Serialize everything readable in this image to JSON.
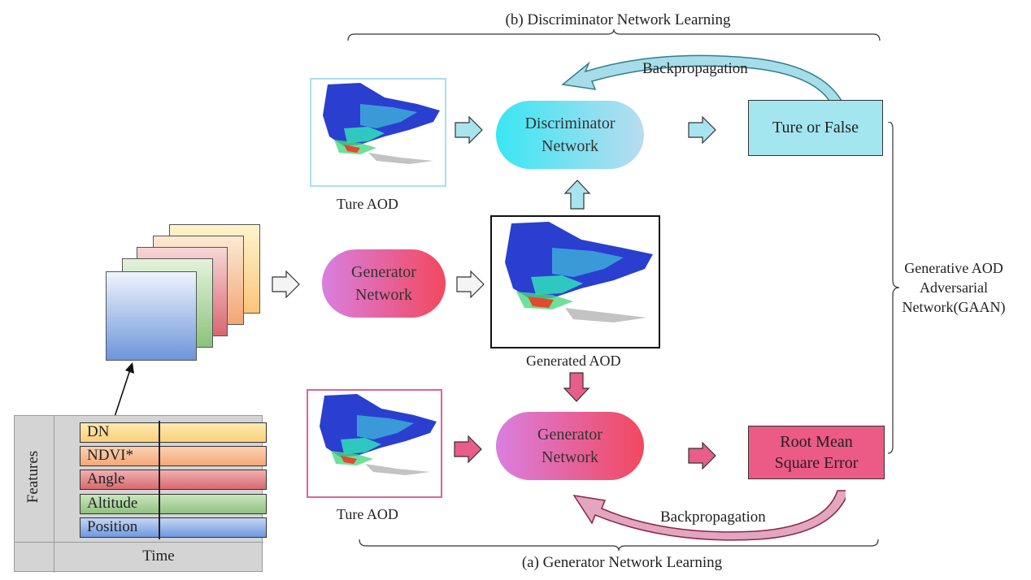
{
  "top_label": "(b) Discriminator Network Learning",
  "bottom_label": "(a) Generator Network Learning",
  "side_label_lines": [
    "Generative AOD",
    "Adversarial",
    "Network(GAAN)"
  ],
  "backprop_top": "Backpropagation",
  "backprop_bottom": "Backpropagation",
  "discriminator_lines": [
    "Discriminator",
    "Network"
  ],
  "generator_mid_lines": [
    "Generator",
    "Network"
  ],
  "generator_bottom_lines": [
    "Generator",
    "Network"
  ],
  "true_false_label": "Ture or False",
  "rmse_lines": [
    "Root Mean",
    "Square Error"
  ],
  "true_aod_top_caption": "Ture AOD",
  "true_aod_bottom_caption": "Ture AOD",
  "generated_aod_caption": "Generated AOD",
  "feature_table": {
    "y_label": "Features",
    "x_label": "Time",
    "rows": [
      {
        "label": "DN",
        "color": "#fbd78a"
      },
      {
        "label": "NDVI*",
        "color": "#f6b98f"
      },
      {
        "label": "Angle",
        "color": "#e3878a"
      },
      {
        "label": "Altitude",
        "color": "#9fcc8f"
      },
      {
        "label": "Position",
        "color": "#7fa3e0"
      }
    ]
  },
  "colors": {
    "cyan_box": "#a3e6f0",
    "cyan_arrow": "#a8e4ef",
    "pink_box": "#ec5a86",
    "pink_arrow": "#e85d8a",
    "teal_backprop": "#3b8fa0",
    "maroon_backprop": "#9b2c4f"
  }
}
